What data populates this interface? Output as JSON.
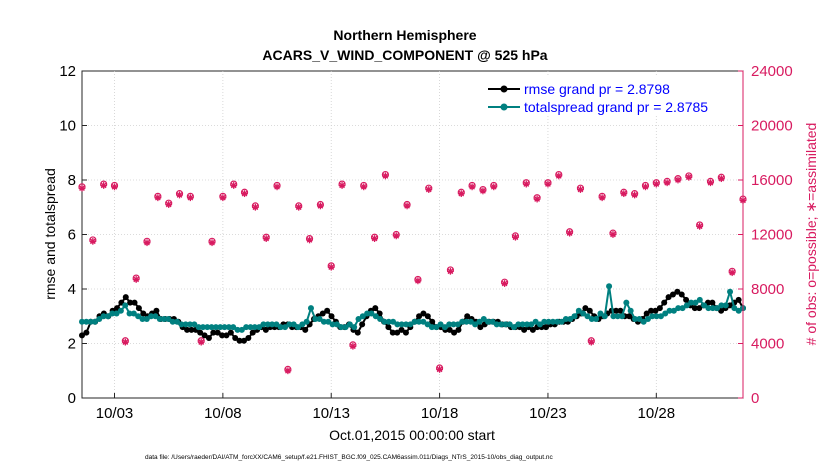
{
  "chart_data": {
    "type": "line",
    "title_line1": "Northern Hemisphere",
    "title_line2": "ACARS_V_WIND_COMPONENT @ 525 hPa",
    "xlabel": "Oct.01,2015 00:00:00 start",
    "ylabel_left": "rmse and totalspread",
    "ylabel_right": "# of obs: o=possible; ∗=assimilated",
    "footnote": "data file: /Users/raeder/DAI/ATM_forcXX/CAM6_setup/f.e21.FHIST_BGC.f09_025.CAM6assim.011/Diags_NTrS_2015-10/obs_diag_output.nc",
    "xlim": [
      1.5,
      32.0
    ],
    "ylim_left": [
      0,
      12
    ],
    "ylim_right": [
      0,
      24000
    ],
    "x_ticks": [
      3,
      8,
      13,
      18,
      23,
      28
    ],
    "x_tick_labels": [
      "10/03",
      "10/08",
      "10/13",
      "10/18",
      "10/23",
      "10/28"
    ],
    "y_left_ticks": [
      "0",
      "2",
      "4",
      "6",
      "8",
      "10",
      "12"
    ],
    "y_right_ticks": [
      "0",
      "4000",
      "8000",
      "12000",
      "16000",
      "20000",
      "24000"
    ],
    "colors": {
      "rmse": "#000000",
      "totalspread": "#008080",
      "obs": "#d81b60",
      "legend_text": "#0000ff",
      "right_axis": "#d81b60"
    },
    "series": [
      {
        "name": "rmse grand pr = 2.8798",
        "values": [
          2.3,
          2.4,
          2.8,
          2.8,
          3.0,
          3.1,
          3.0,
          3.2,
          3.3,
          3.5,
          3.7,
          3.5,
          3.5,
          3.3,
          3.1,
          3.0,
          3.1,
          3.2,
          2.9,
          2.9,
          2.9,
          2.9,
          2.8,
          2.6,
          2.5,
          2.5,
          2.5,
          2.4,
          2.3,
          2.2,
          2.4,
          2.4,
          2.3,
          2.3,
          2.4,
          2.2,
          2.1,
          2.1,
          2.2,
          2.4,
          2.5,
          2.6,
          2.5,
          2.6,
          2.6,
          2.6,
          2.7,
          2.7,
          2.6,
          2.6,
          2.6,
          2.5,
          2.7,
          2.9,
          3.0,
          3.1,
          3.2,
          3.0,
          2.8,
          2.6,
          2.6,
          2.7,
          2.5,
          2.4,
          2.7,
          3.0,
          3.2,
          3.3,
          3.1,
          2.8,
          2.6,
          2.4,
          2.4,
          2.5,
          2.4,
          2.6,
          2.8,
          3.0,
          3.1,
          3.0,
          2.8,
          2.6,
          2.6,
          2.5,
          2.5,
          2.4,
          2.5,
          2.8,
          3.0,
          2.9,
          2.8,
          2.6,
          2.7,
          2.8,
          2.8,
          2.8,
          2.7,
          2.7,
          2.6,
          2.6,
          2.6,
          2.5,
          2.6,
          2.5,
          2.6,
          2.6,
          2.6,
          2.7,
          2.7,
          2.8,
          2.8,
          2.8,
          2.9,
          3.0,
          3.1,
          3.3,
          3.2,
          3.0,
          2.9,
          3.0,
          3.1,
          3.2,
          3.2,
          3.2,
          3.0,
          3.0,
          2.9,
          2.8,
          2.9,
          3.1,
          3.2,
          3.2,
          3.3,
          3.5,
          3.7,
          3.8,
          3.9,
          3.8,
          3.6,
          3.4,
          3.3,
          3.3,
          3.4,
          3.5,
          3.5,
          3.3,
          3.2,
          3.3,
          3.4,
          3.5,
          3.6,
          3.3
        ]
      },
      {
        "name": "totalspread grand pr = 2.8785",
        "values": [
          2.8,
          2.8,
          2.8,
          2.8,
          2.9,
          3.0,
          3.0,
          3.1,
          3.1,
          3.2,
          3.4,
          3.1,
          3.1,
          3.0,
          2.9,
          2.9,
          3.0,
          3.0,
          2.9,
          2.9,
          2.9,
          2.8,
          2.8,
          2.7,
          2.7,
          2.7,
          2.7,
          2.6,
          2.6,
          2.6,
          2.6,
          2.6,
          2.6,
          2.6,
          2.6,
          2.6,
          2.5,
          2.5,
          2.6,
          2.6,
          2.6,
          2.6,
          2.7,
          2.7,
          2.7,
          2.7,
          2.6,
          2.6,
          2.7,
          2.7,
          2.6,
          2.7,
          2.8,
          3.3,
          2.9,
          2.9,
          2.8,
          2.8,
          2.7,
          2.7,
          2.6,
          2.6,
          2.7,
          2.6,
          2.9,
          3.0,
          3.1,
          3.1,
          3.0,
          2.9,
          2.8,
          2.8,
          2.8,
          2.7,
          2.7,
          2.7,
          2.7,
          2.8,
          2.8,
          2.8,
          2.7,
          2.6,
          2.6,
          2.7,
          2.6,
          2.7,
          2.7,
          2.7,
          2.8,
          2.8,
          2.8,
          2.7,
          2.8,
          2.9,
          2.8,
          2.8,
          2.7,
          2.7,
          2.7,
          2.7,
          2.6,
          2.7,
          2.7,
          2.7,
          2.7,
          2.8,
          2.7,
          2.8,
          2.8,
          2.8,
          2.8,
          2.8,
          2.9,
          2.9,
          3.0,
          3.2,
          3.1,
          3.0,
          2.9,
          2.9,
          3.1,
          3.0,
          4.1,
          3.0,
          3.0,
          3.0,
          3.5,
          3.2,
          2.9,
          2.9,
          2.8,
          2.9,
          3.0,
          3.0,
          3.0,
          3.1,
          3.2,
          3.2,
          3.3,
          3.3,
          3.4,
          3.5,
          3.5,
          3.6,
          3.4,
          3.3,
          3.3,
          3.3,
          3.4,
          3.4,
          3.9,
          3.3,
          3.2,
          3.3
        ]
      }
    ],
    "obs_x": [
      1.5,
      2.0,
      2.5,
      3.0,
      3.5,
      4.0,
      4.5,
      5.0,
      5.5,
      6.0,
      6.5,
      7.0,
      7.5,
      8.0,
      8.5,
      9.0,
      9.5,
      10.0,
      10.5,
      11.0,
      11.5,
      12.0,
      12.5,
      13.0,
      13.5,
      14.0,
      14.5,
      15.0,
      15.5,
      16.0,
      16.5,
      17.0,
      17.5,
      18.0,
      18.5,
      19.0,
      19.5,
      20.0,
      20.5,
      21.0,
      21.5,
      22.0,
      22.5,
      23.0,
      23.5,
      24.0,
      24.5,
      25.0,
      25.5,
      26.0,
      26.5,
      27.0,
      27.5,
      28.0,
      28.5,
      29.0,
      29.5,
      30.0,
      30.5,
      31.0,
      31.5,
      32.0
    ],
    "obs_possible": [
      15500,
      11600,
      15700,
      15600,
      4200,
      8800,
      11500,
      14800,
      14300,
      15000,
      14800,
      4200,
      11500,
      14800,
      15700,
      15100,
      14100,
      11800,
      15600,
      2100,
      14100,
      11700,
      14200,
      9700,
      15700,
      3900,
      15600,
      11800,
      16400,
      12000,
      14200,
      8700,
      15400,
      2200,
      9400,
      15100,
      15600,
      15300,
      15600,
      8500,
      11900,
      15800,
      14700,
      15800,
      16400,
      12200,
      15400,
      4200,
      14800,
      12100,
      15100,
      15000,
      15600,
      15800,
      15900,
      16100,
      16300,
      12700,
      15900,
      16200,
      9300,
      14600
    ],
    "obs_assimilated": [
      15400,
      11500,
      15600,
      15500,
      4100,
      8700,
      11400,
      14700,
      14200,
      14900,
      14700,
      4100,
      11400,
      14700,
      15600,
      15000,
      14000,
      11700,
      15500,
      2000,
      14000,
      11600,
      14100,
      9600,
      15600,
      3800,
      15500,
      11700,
      16300,
      11900,
      14100,
      8600,
      15300,
      2100,
      9300,
      15000,
      15500,
      15200,
      15500,
      8400,
      11800,
      15700,
      14600,
      15700,
      16300,
      12100,
      15300,
      4100,
      14700,
      12000,
      15000,
      14900,
      15500,
      15700,
      15800,
      16000,
      16200,
      12600,
      15800,
      16100,
      9200,
      14500
    ]
  }
}
